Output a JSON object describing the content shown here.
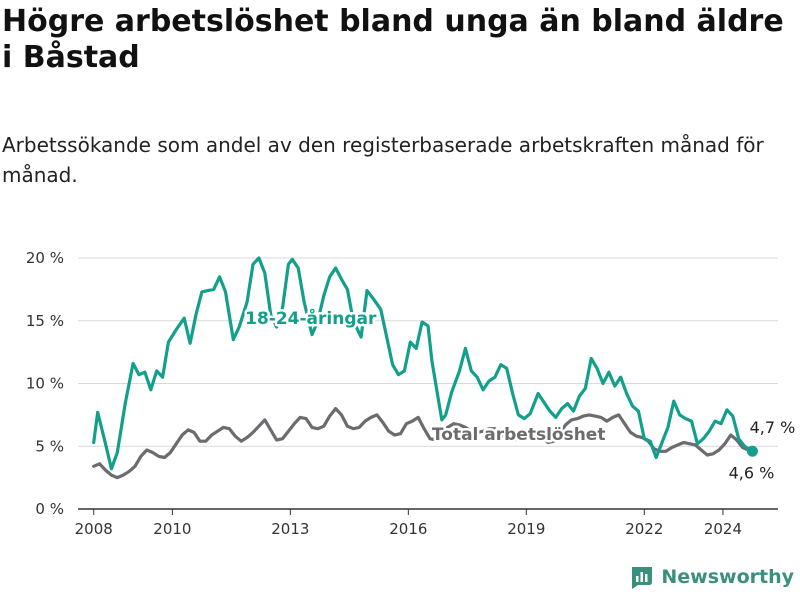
{
  "title": "Högre arbetslöshet bland unga än bland äldre i Båstad",
  "subtitle": "Arbetssökande som andel av den registerbaserade arbetskraften månad för månad.",
  "brand": {
    "name": "Newsworthy"
  },
  "colors": {
    "youth": "#12a08c",
    "total": "#6b6b70",
    "grid": "#d9d9d9",
    "axis": "#333333"
  },
  "chart_data": {
    "type": "line",
    "ylim": [
      0,
      20
    ],
    "xlim": [
      2007.6,
      2025.4
    ],
    "y_ticks": [
      {
        "value": 0,
        "label": "0 %"
      },
      {
        "value": 5,
        "label": "5 %"
      },
      {
        "value": 10,
        "label": "10 %"
      },
      {
        "value": 15,
        "label": "15 %"
      },
      {
        "value": 20,
        "label": "20 %"
      }
    ],
    "x_ticks": [
      {
        "value": 2008,
        "label": "2008"
      },
      {
        "value": 2010,
        "label": "2010"
      },
      {
        "value": 2013,
        "label": "2013"
      },
      {
        "value": 2016,
        "label": "2016"
      },
      {
        "value": 2019,
        "label": "2019"
      },
      {
        "value": 2022,
        "label": "2022"
      },
      {
        "value": 2024,
        "label": "2024"
      }
    ],
    "series": [
      {
        "name": "18-24-åringar",
        "label": "18-24-åringar",
        "color": "#12a08c",
        "last_label": "4,7 %",
        "points": [
          [
            2008.0,
            5.3
          ],
          [
            2008.1,
            7.7
          ],
          [
            2008.3,
            5.2
          ],
          [
            2008.45,
            3.2
          ],
          [
            2008.6,
            4.5
          ],
          [
            2008.8,
            8.4
          ],
          [
            2009.0,
            11.6
          ],
          [
            2009.15,
            10.7
          ],
          [
            2009.3,
            10.9
          ],
          [
            2009.45,
            9.5
          ],
          [
            2009.6,
            11.0
          ],
          [
            2009.75,
            10.5
          ],
          [
            2009.9,
            13.3
          ],
          [
            2010.1,
            14.3
          ],
          [
            2010.3,
            15.2
          ],
          [
            2010.45,
            13.2
          ],
          [
            2010.6,
            15.5
          ],
          [
            2010.75,
            17.3
          ],
          [
            2010.9,
            17.4
          ],
          [
            2011.05,
            17.5
          ],
          [
            2011.2,
            18.5
          ],
          [
            2011.35,
            17.3
          ],
          [
            2011.55,
            13.5
          ],
          [
            2011.7,
            14.5
          ],
          [
            2011.9,
            16.5
          ],
          [
            2012.05,
            19.5
          ],
          [
            2012.2,
            20.0
          ],
          [
            2012.35,
            18.8
          ],
          [
            2012.5,
            15.5
          ],
          [
            2012.65,
            14.5
          ],
          [
            2012.8,
            16.0
          ],
          [
            2012.95,
            19.5
          ],
          [
            2013.05,
            19.9
          ],
          [
            2013.2,
            19.2
          ],
          [
            2013.35,
            16.5
          ],
          [
            2013.55,
            13.9
          ],
          [
            2013.7,
            15.0
          ],
          [
            2013.85,
            17.0
          ],
          [
            2014.0,
            18.5
          ],
          [
            2014.15,
            19.2
          ],
          [
            2014.3,
            18.3
          ],
          [
            2014.45,
            17.5
          ],
          [
            2014.6,
            15.0
          ],
          [
            2014.8,
            13.7
          ],
          [
            2014.95,
            17.4
          ],
          [
            2015.1,
            16.8
          ],
          [
            2015.3,
            15.9
          ],
          [
            2015.45,
            13.7
          ],
          [
            2015.6,
            11.5
          ],
          [
            2015.75,
            10.7
          ],
          [
            2015.9,
            11.0
          ],
          [
            2016.05,
            13.3
          ],
          [
            2016.2,
            12.8
          ],
          [
            2016.35,
            14.9
          ],
          [
            2016.5,
            14.6
          ],
          [
            2016.6,
            11.8
          ],
          [
            2016.75,
            9.0
          ],
          [
            2016.85,
            7.1
          ],
          [
            2016.95,
            7.5
          ],
          [
            2017.1,
            9.3
          ],
          [
            2017.3,
            11.0
          ],
          [
            2017.45,
            12.8
          ],
          [
            2017.6,
            11.0
          ],
          [
            2017.75,
            10.5
          ],
          [
            2017.9,
            9.5
          ],
          [
            2018.05,
            10.2
          ],
          [
            2018.2,
            10.5
          ],
          [
            2018.35,
            11.5
          ],
          [
            2018.5,
            11.2
          ],
          [
            2018.65,
            9.2
          ],
          [
            2018.8,
            7.5
          ],
          [
            2018.95,
            7.2
          ],
          [
            2019.1,
            7.6
          ],
          [
            2019.3,
            9.2
          ],
          [
            2019.45,
            8.5
          ],
          [
            2019.6,
            7.8
          ],
          [
            2019.75,
            7.3
          ],
          [
            2019.9,
            8.0
          ],
          [
            2020.05,
            8.4
          ],
          [
            2020.2,
            7.8
          ],
          [
            2020.35,
            9.0
          ],
          [
            2020.5,
            9.6
          ],
          [
            2020.65,
            12.0
          ],
          [
            2020.8,
            11.2
          ],
          [
            2020.95,
            10.0
          ],
          [
            2021.1,
            10.9
          ],
          [
            2021.25,
            9.8
          ],
          [
            2021.4,
            10.5
          ],
          [
            2021.55,
            9.2
          ],
          [
            2021.7,
            8.2
          ],
          [
            2021.85,
            7.8
          ],
          [
            2022.0,
            5.6
          ],
          [
            2022.15,
            5.4
          ],
          [
            2022.3,
            4.1
          ],
          [
            2022.45,
            5.3
          ],
          [
            2022.6,
            6.5
          ],
          [
            2022.75,
            8.6
          ],
          [
            2022.9,
            7.5
          ],
          [
            2023.05,
            7.2
          ],
          [
            2023.2,
            7.0
          ],
          [
            2023.35,
            5.2
          ],
          [
            2023.5,
            5.6
          ],
          [
            2023.65,
            6.2
          ],
          [
            2023.8,
            7.0
          ],
          [
            2023.95,
            6.8
          ],
          [
            2024.1,
            7.9
          ],
          [
            2024.25,
            7.4
          ],
          [
            2024.4,
            5.6
          ],
          [
            2024.55,
            5.0
          ],
          [
            2024.7,
            4.7
          ]
        ]
      },
      {
        "name": "Total arbetslöshet",
        "label": "Total arbetslöshet",
        "color": "#6b6b70",
        "last_label": "4,6 %",
        "points": [
          [
            2008.0,
            3.4
          ],
          [
            2008.15,
            3.6
          ],
          [
            2008.3,
            3.1
          ],
          [
            2008.45,
            2.7
          ],
          [
            2008.6,
            2.5
          ],
          [
            2008.75,
            2.7
          ],
          [
            2008.9,
            3.0
          ],
          [
            2009.05,
            3.4
          ],
          [
            2009.2,
            4.2
          ],
          [
            2009.35,
            4.7
          ],
          [
            2009.5,
            4.5
          ],
          [
            2009.65,
            4.2
          ],
          [
            2009.8,
            4.1
          ],
          [
            2009.95,
            4.5
          ],
          [
            2010.1,
            5.2
          ],
          [
            2010.25,
            5.9
          ],
          [
            2010.4,
            6.3
          ],
          [
            2010.55,
            6.1
          ],
          [
            2010.7,
            5.4
          ],
          [
            2010.85,
            5.4
          ],
          [
            2011.0,
            5.9
          ],
          [
            2011.15,
            6.2
          ],
          [
            2011.3,
            6.5
          ],
          [
            2011.45,
            6.4
          ],
          [
            2011.6,
            5.8
          ],
          [
            2011.75,
            5.4
          ],
          [
            2011.9,
            5.7
          ],
          [
            2012.05,
            6.1
          ],
          [
            2012.2,
            6.6
          ],
          [
            2012.35,
            7.1
          ],
          [
            2012.5,
            6.3
          ],
          [
            2012.65,
            5.5
          ],
          [
            2012.8,
            5.6
          ],
          [
            2012.95,
            6.2
          ],
          [
            2013.1,
            6.8
          ],
          [
            2013.25,
            7.3
          ],
          [
            2013.4,
            7.2
          ],
          [
            2013.55,
            6.5
          ],
          [
            2013.7,
            6.4
          ],
          [
            2013.85,
            6.6
          ],
          [
            2014.0,
            7.4
          ],
          [
            2014.15,
            8.0
          ],
          [
            2014.3,
            7.5
          ],
          [
            2014.45,
            6.6
          ],
          [
            2014.6,
            6.4
          ],
          [
            2014.75,
            6.5
          ],
          [
            2014.9,
            7.0
          ],
          [
            2015.05,
            7.3
          ],
          [
            2015.2,
            7.5
          ],
          [
            2015.35,
            6.9
          ],
          [
            2015.5,
            6.2
          ],
          [
            2015.65,
            5.9
          ],
          [
            2015.8,
            6.0
          ],
          [
            2015.95,
            6.8
          ],
          [
            2016.1,
            7.0
          ],
          [
            2016.25,
            7.3
          ],
          [
            2016.4,
            6.4
          ],
          [
            2016.55,
            5.6
          ],
          [
            2016.7,
            5.5
          ],
          [
            2016.85,
            6.0
          ],
          [
            2017.0,
            6.5
          ],
          [
            2017.15,
            6.8
          ],
          [
            2017.3,
            6.7
          ],
          [
            2017.45,
            6.5
          ],
          [
            2017.6,
            6.2
          ],
          [
            2017.75,
            6.1
          ],
          [
            2017.9,
            6.2
          ],
          [
            2018.05,
            6.4
          ],
          [
            2018.2,
            6.4
          ],
          [
            2018.35,
            6.0
          ],
          [
            2018.5,
            5.6
          ],
          [
            2018.65,
            5.5
          ],
          [
            2018.8,
            5.6
          ],
          [
            2018.95,
            5.8
          ],
          [
            2019.1,
            6.0
          ],
          [
            2019.25,
            6.3
          ],
          [
            2019.4,
            5.9
          ],
          [
            2019.55,
            5.3
          ],
          [
            2019.7,
            5.4
          ],
          [
            2019.85,
            6.0
          ],
          [
            2020.0,
            6.7
          ],
          [
            2020.15,
            7.1
          ],
          [
            2020.3,
            7.2
          ],
          [
            2020.45,
            7.4
          ],
          [
            2020.6,
            7.5
          ],
          [
            2020.75,
            7.4
          ],
          [
            2020.9,
            7.3
          ],
          [
            2021.05,
            7.0
          ],
          [
            2021.2,
            7.3
          ],
          [
            2021.35,
            7.5
          ],
          [
            2021.5,
            6.8
          ],
          [
            2021.65,
            6.1
          ],
          [
            2021.8,
            5.8
          ],
          [
            2021.95,
            5.7
          ],
          [
            2022.1,
            5.4
          ],
          [
            2022.25,
            4.8
          ],
          [
            2022.4,
            4.6
          ],
          [
            2022.55,
            4.6
          ],
          [
            2022.7,
            4.9
          ],
          [
            2022.85,
            5.1
          ],
          [
            2023.0,
            5.3
          ],
          [
            2023.15,
            5.2
          ],
          [
            2023.3,
            5.1
          ],
          [
            2023.45,
            4.7
          ],
          [
            2023.6,
            4.3
          ],
          [
            2023.75,
            4.4
          ],
          [
            2023.9,
            4.7
          ],
          [
            2024.05,
            5.2
          ],
          [
            2024.2,
            5.9
          ],
          [
            2024.35,
            5.5
          ],
          [
            2024.5,
            4.9
          ],
          [
            2024.65,
            4.7
          ],
          [
            2024.75,
            4.6
          ]
        ]
      }
    ]
  }
}
